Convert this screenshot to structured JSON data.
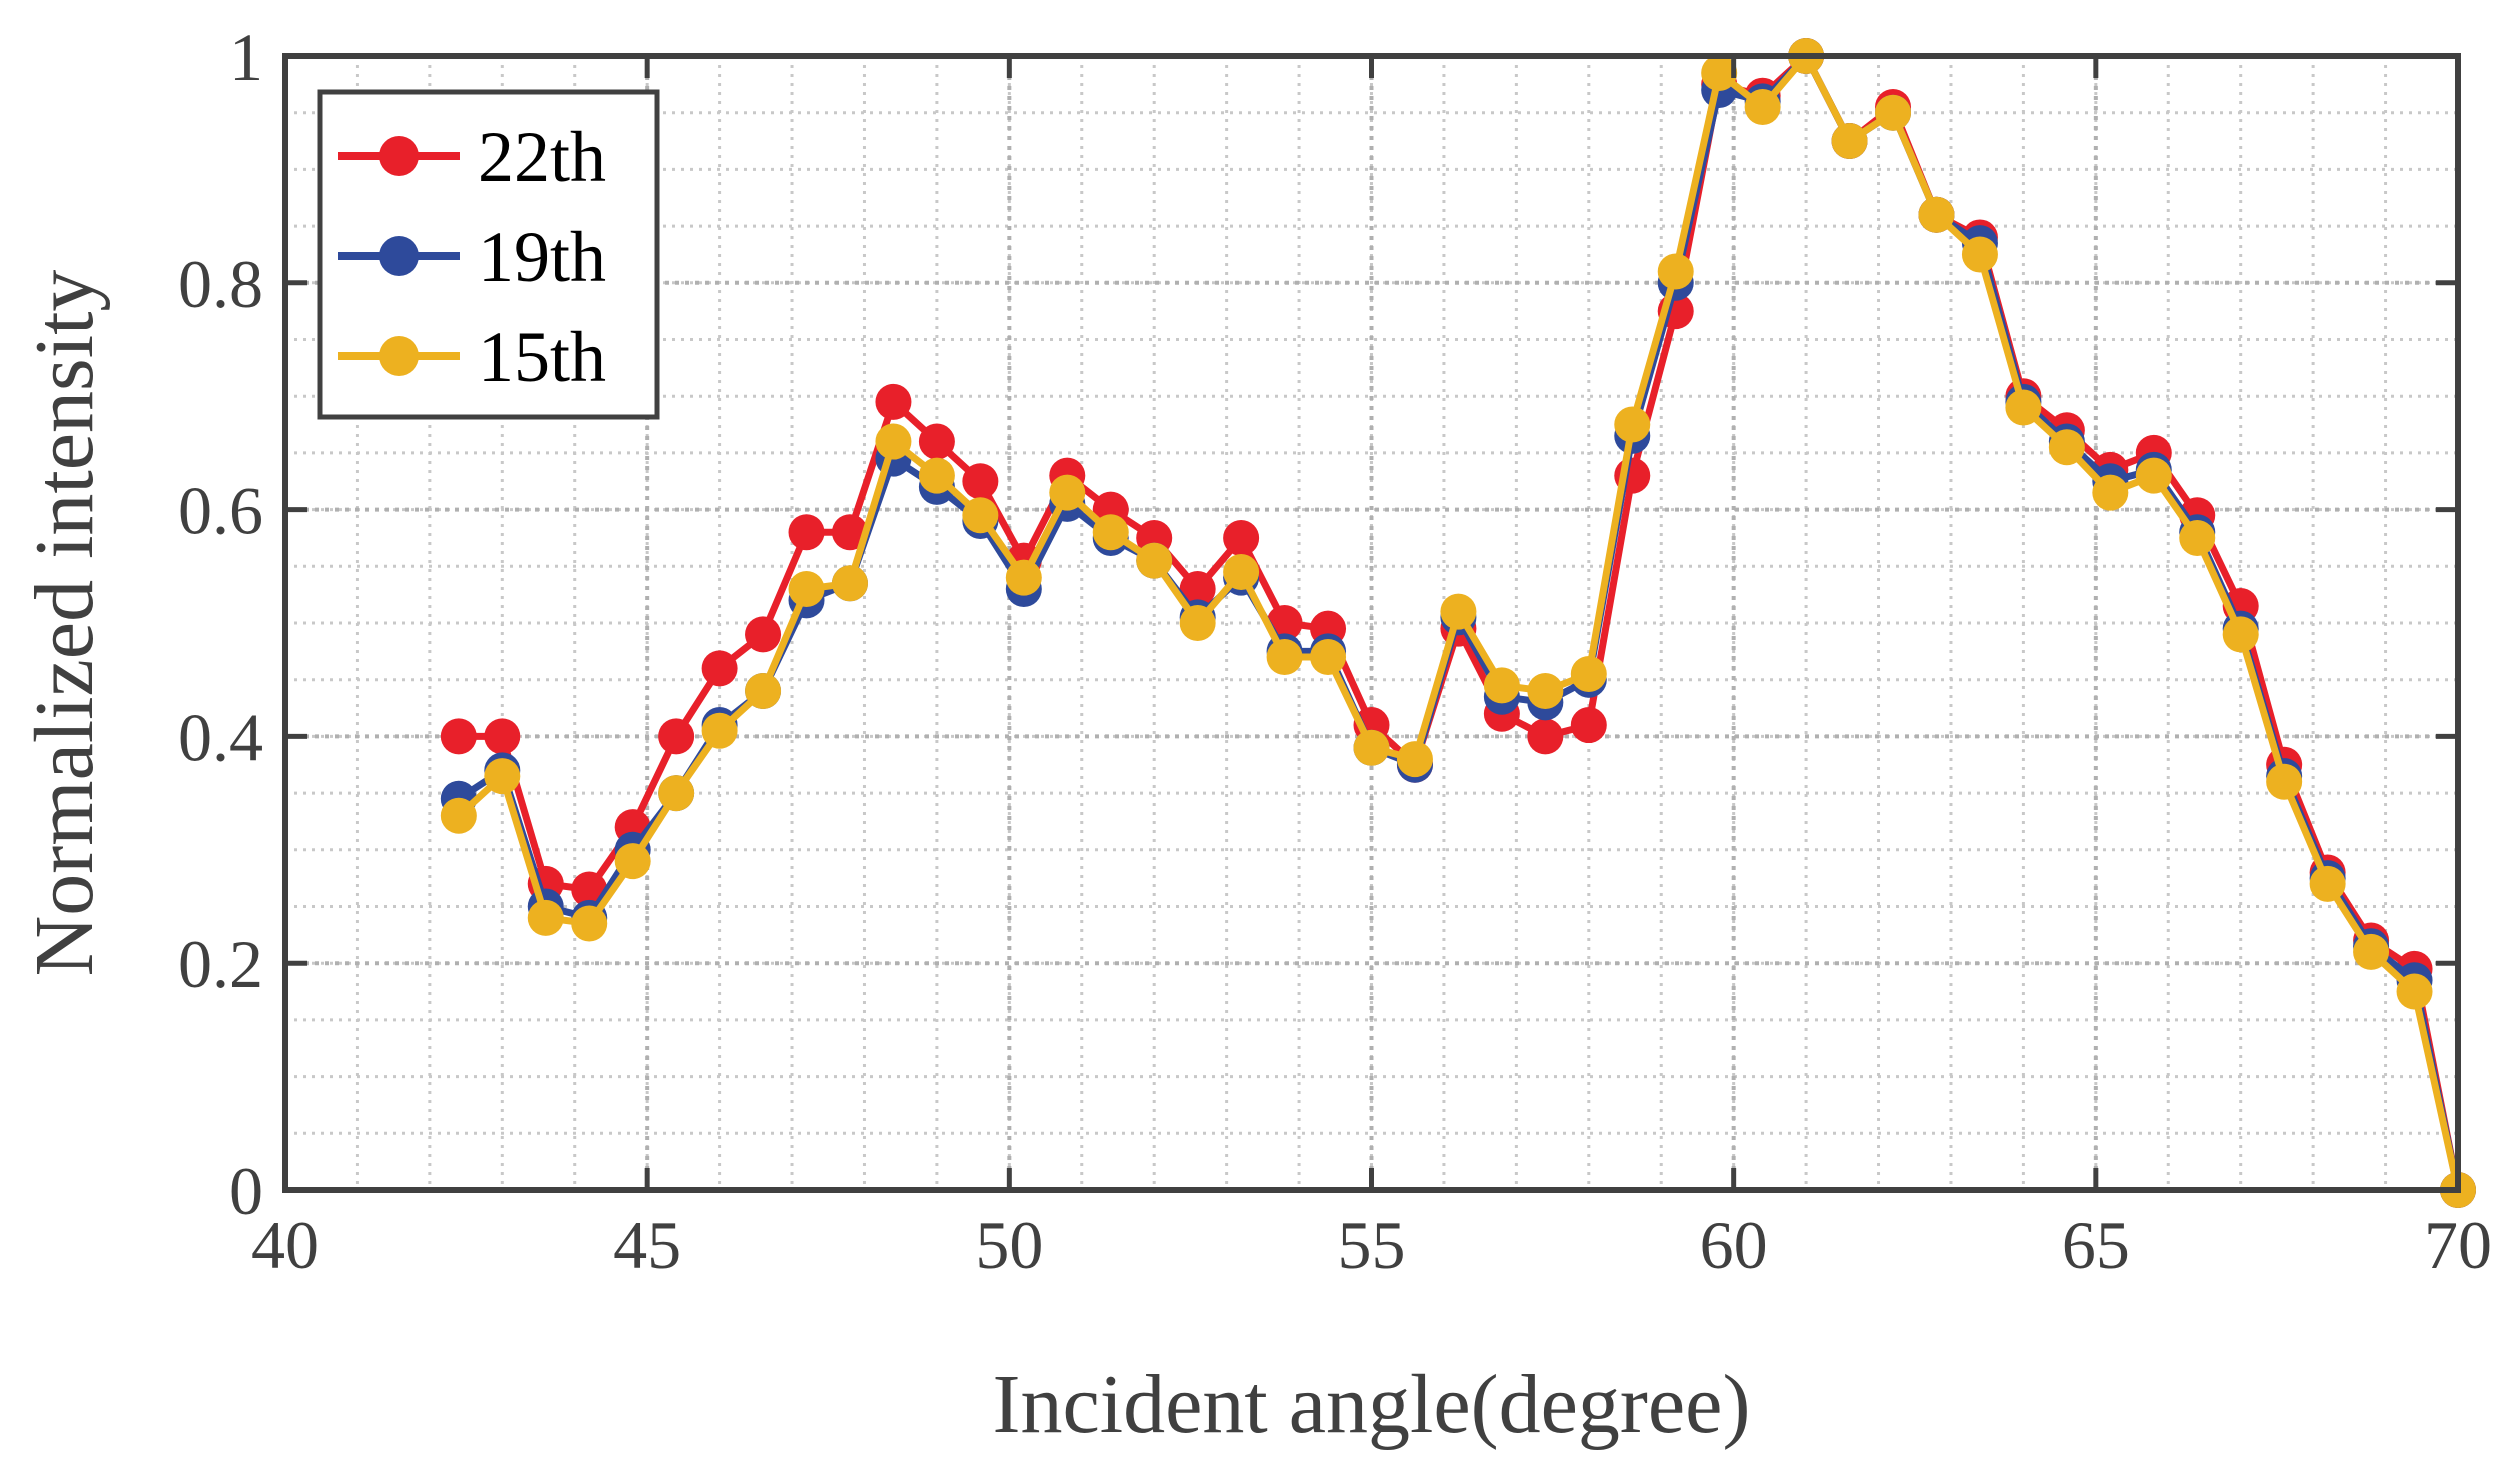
{
  "chart_data": {
    "type": "line",
    "title": "",
    "xlabel": "Incident angle(degree)",
    "ylabel": "Normalized intensity",
    "xlim": [
      40,
      70
    ],
    "ylim": [
      0,
      1
    ],
    "xticks": [
      40,
      45,
      50,
      55,
      60,
      65,
      70
    ],
    "yticks": [
      0,
      0.2,
      0.4,
      0.6,
      0.8,
      1
    ],
    "x_tick_labels": [
      "40",
      "45",
      "50",
      "55",
      "60",
      "65",
      "70"
    ],
    "y_tick_labels": [
      "0",
      "0.2",
      "0.4",
      "0.6",
      "0.8",
      "1"
    ],
    "grid": true,
    "minor_grid": true,
    "legend_position": "top-left",
    "x": [
      42.4,
      43.0,
      43.6,
      44.2,
      44.8,
      45.4,
      46.0,
      46.6,
      47.2,
      47.8,
      48.4,
      49.0,
      49.6,
      50.2,
      50.8,
      51.4,
      52.0,
      52.6,
      53.2,
      53.8,
      54.4,
      55.0,
      55.6,
      56.2,
      56.8,
      57.4,
      58.0,
      58.6,
      59.2,
      59.8,
      60.4,
      61.0,
      61.6,
      62.2,
      62.8,
      63.4,
      64.0,
      64.6,
      65.2,
      65.8,
      66.4,
      67.0,
      67.6,
      68.2,
      68.8,
      69.4,
      70.0
    ],
    "series": [
      {
        "name": "22th",
        "color": "#e8202a",
        "values": [
          0.4,
          0.4,
          0.27,
          0.265,
          0.32,
          0.4,
          0.46,
          0.49,
          0.58,
          0.58,
          0.695,
          0.66,
          0.625,
          0.555,
          0.63,
          0.6,
          0.575,
          0.53,
          0.575,
          0.5,
          0.495,
          0.41,
          0.375,
          0.495,
          0.42,
          0.4,
          0.41,
          0.63,
          0.775,
          0.975,
          0.965,
          1.0,
          0.925,
          0.955,
          0.86,
          0.84,
          0.7,
          0.67,
          0.635,
          0.65,
          0.595,
          0.515,
          0.375,
          0.28,
          0.22,
          0.195,
          0.0
        ]
      },
      {
        "name": "19th",
        "color": "#2e4a9b",
        "values": [
          0.345,
          0.37,
          0.25,
          0.24,
          0.3,
          0.35,
          0.41,
          0.44,
          0.52,
          0.535,
          0.645,
          0.62,
          0.59,
          0.53,
          0.605,
          0.575,
          0.555,
          0.505,
          0.54,
          0.475,
          0.475,
          0.39,
          0.375,
          0.505,
          0.435,
          0.43,
          0.45,
          0.665,
          0.8,
          0.97,
          0.96,
          1.0,
          0.925,
          0.95,
          0.86,
          0.835,
          0.695,
          0.66,
          0.625,
          0.635,
          0.58,
          0.495,
          0.365,
          0.275,
          0.215,
          0.185,
          0.0
        ]
      },
      {
        "name": "15th",
        "color": "#edb120",
        "values": [
          0.33,
          0.365,
          0.24,
          0.235,
          0.29,
          0.35,
          0.405,
          0.44,
          0.53,
          0.535,
          0.66,
          0.63,
          0.595,
          0.54,
          0.615,
          0.58,
          0.555,
          0.5,
          0.545,
          0.47,
          0.47,
          0.39,
          0.38,
          0.51,
          0.445,
          0.44,
          0.455,
          0.675,
          0.81,
          0.985,
          0.955,
          1.0,
          0.925,
          0.95,
          0.86,
          0.825,
          0.69,
          0.655,
          0.615,
          0.63,
          0.575,
          0.49,
          0.36,
          0.27,
          0.21,
          0.175,
          0.0
        ]
      }
    ]
  }
}
